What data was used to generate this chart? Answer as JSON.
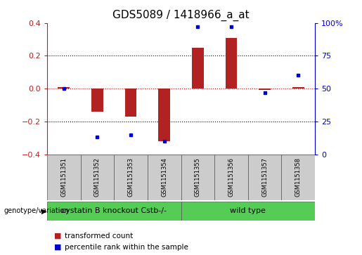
{
  "title": "GDS5089 / 1418966_a_at",
  "samples": [
    "GSM1151351",
    "GSM1151352",
    "GSM1151353",
    "GSM1151354",
    "GSM1151355",
    "GSM1151356",
    "GSM1151357",
    "GSM1151358"
  ],
  "transformed_count": [
    0.01,
    -0.14,
    -0.17,
    -0.32,
    0.25,
    0.31,
    -0.01,
    0.01
  ],
  "percentile_rank": [
    50,
    13,
    15,
    10,
    97,
    97,
    47,
    60
  ],
  "ylim_left": [
    -0.4,
    0.4
  ],
  "ylim_right": [
    0,
    100
  ],
  "yticks_left": [
    -0.4,
    -0.2,
    0.0,
    0.2,
    0.4
  ],
  "yticks_right": [
    0,
    25,
    50,
    75,
    100
  ],
  "ytick_labels_right": [
    "0",
    "25",
    "50",
    "75",
    "100%"
  ],
  "bar_color": "#b22222",
  "dot_color": "#0000cc",
  "zero_line_color": "#cc0000",
  "dotted_line_color": "#000000",
  "group1_label": "cystatin B knockout Cstb-/-",
  "group2_label": "wild type",
  "group1_count": 4,
  "group2_count": 4,
  "group_color": "#55cc55",
  "genotype_label": "genotype/variation",
  "legend_bar_label": "transformed count",
  "legend_dot_label": "percentile rank within the sample",
  "bar_width": 0.35,
  "background_color": "#ffffff",
  "plot_bg_color": "#ffffff",
  "sample_box_color": "#cccccc",
  "title_fontsize": 11,
  "tick_fontsize": 8,
  "sample_fontsize": 6,
  "group_fontsize": 8,
  "legend_fontsize": 7.5
}
